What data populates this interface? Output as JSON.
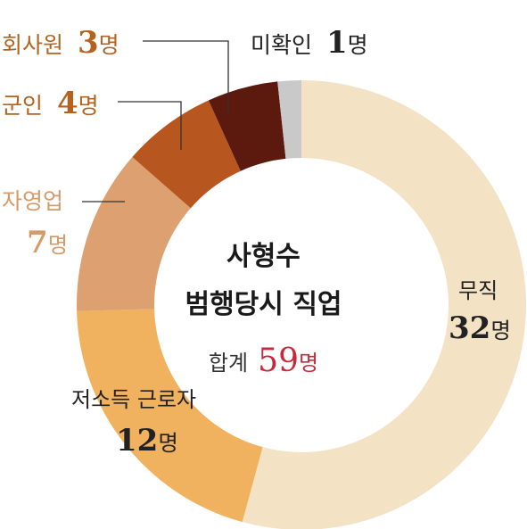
{
  "chart_data": {
    "type": "donut",
    "title": "사형수 범행당시 직업",
    "title_line1": "사형수",
    "title_line2": "범행당시 직업",
    "total_label": "합계",
    "total_value": 59,
    "unit": "명",
    "series": [
      {
        "name": "무직",
        "value": 32,
        "color": "#f3e2c4"
      },
      {
        "name": "저소득 근로자",
        "value": 12,
        "color": "#f0b25f"
      },
      {
        "name": "자영업",
        "value": 7,
        "color": "#dda070"
      },
      {
        "name": "군인",
        "value": 4,
        "color": "#b8561f"
      },
      {
        "name": "회사원",
        "value": 3,
        "color": "#5c1a0e"
      },
      {
        "name": "미확인",
        "value": 1,
        "color": "#c9c9c9"
      }
    ],
    "colors": {
      "total_value": "#c8283a",
      "label_brown": "#b5621f",
      "label_tan": "#d49a6a",
      "label_dark": "#222222"
    }
  }
}
